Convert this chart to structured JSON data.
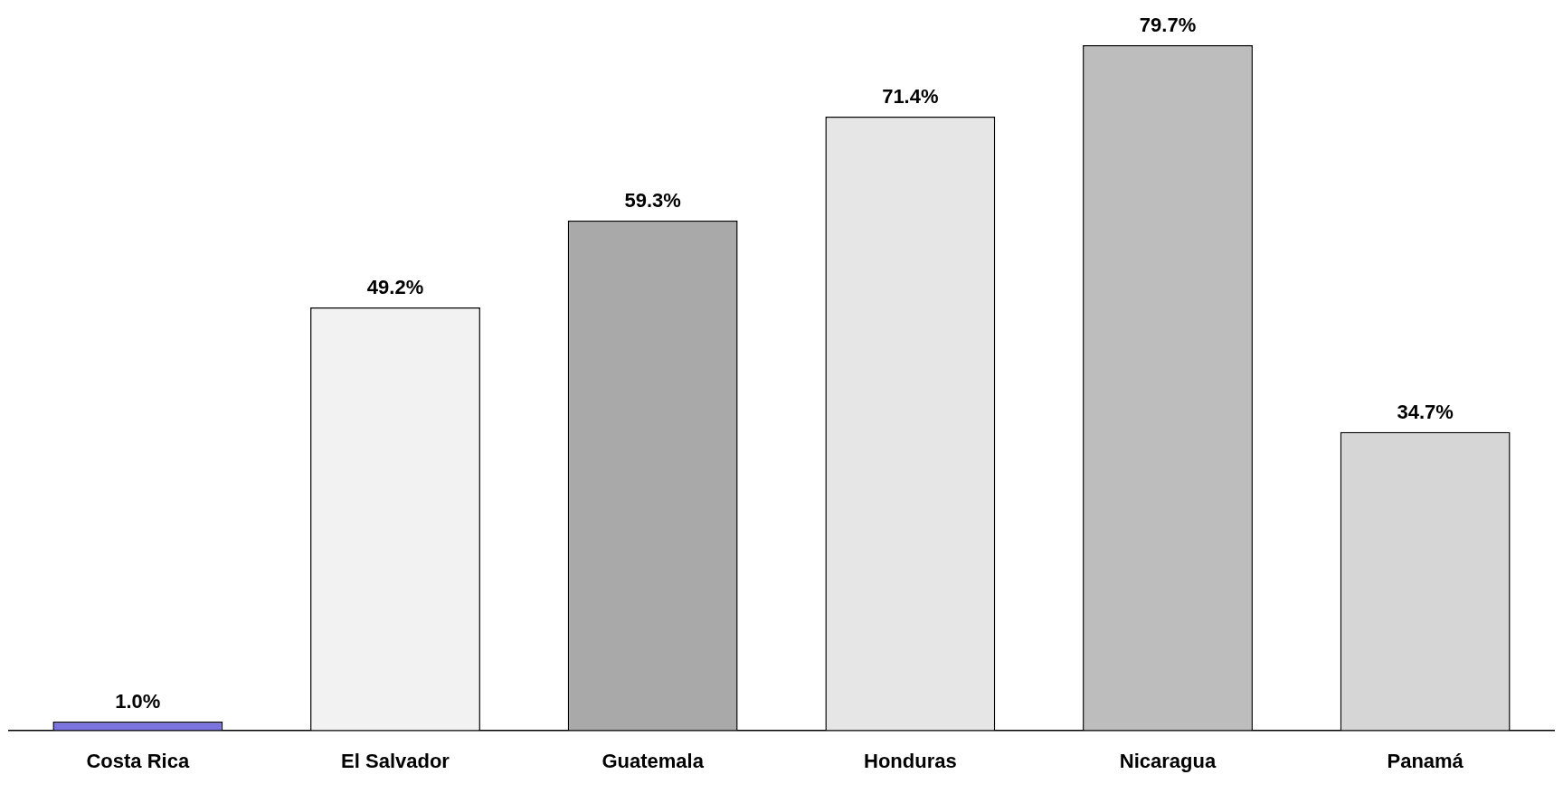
{
  "chart_data": {
    "type": "bar",
    "categories": [
      "Costa Rica",
      "El Salvador",
      "Guatemala",
      "Honduras",
      "Nicaragua",
      "Panamá"
    ],
    "values": [
      1.0,
      49.2,
      59.3,
      71.4,
      79.7,
      34.7
    ],
    "value_labels": [
      "1.0%",
      "49.2%",
      "59.3%",
      "71.4%",
      "79.7%",
      "34.7%"
    ],
    "colors": [
      "#7b74e0",
      "#f2f2f2",
      "#a9a9a9",
      "#e6e6e6",
      "#bdbdbd",
      "#d6d6d6"
    ],
    "grid": false,
    "legend": false,
    "tick_labels": "x"
  }
}
